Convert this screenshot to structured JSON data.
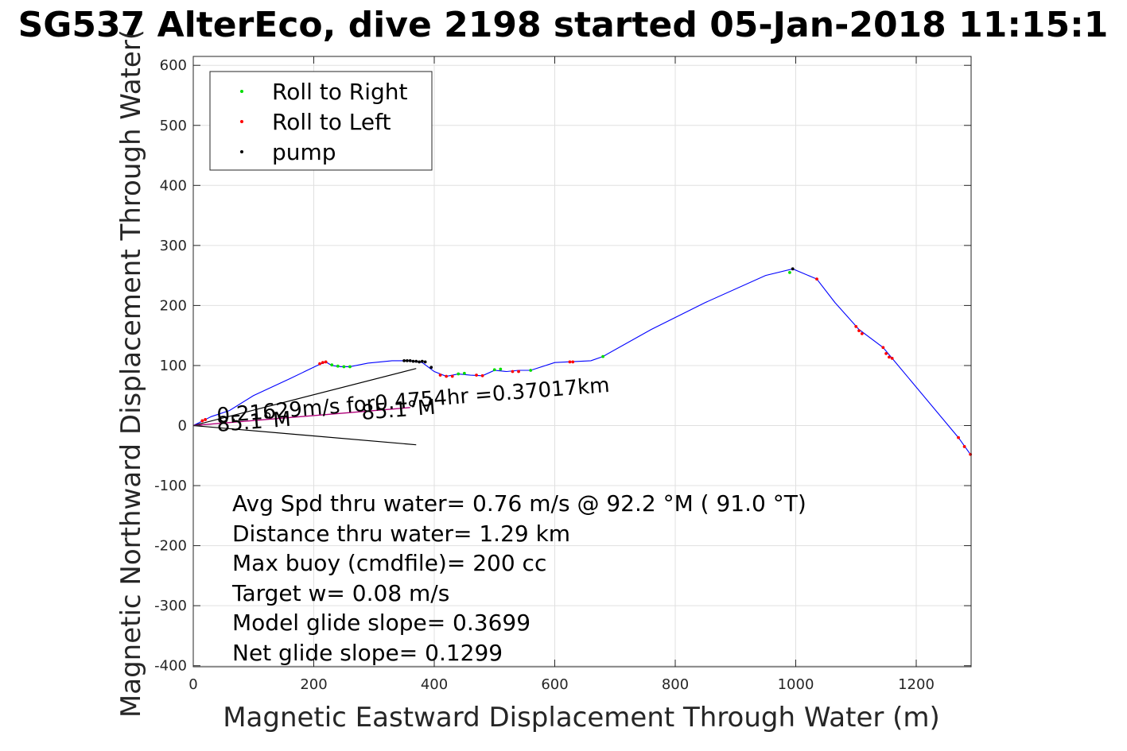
{
  "chart_data": {
    "type": "line",
    "title": "SG537 AlterEco, dive 2198 started 05-Jan-2018 11:15:1",
    "xlabel": "Magnetic Eastward Displacement Through Water (m)",
    "ylabel": "Magnetic Northward Displacement Through Water(",
    "xlim": [
      0,
      1290
    ],
    "ylim": [
      -400,
      610
    ],
    "xticks": [
      0,
      200,
      400,
      600,
      800,
      1000,
      1200
    ],
    "yticks": [
      600,
      500,
      400,
      300,
      200,
      100,
      0,
      -100,
      -200,
      -300,
      -400
    ],
    "grid": true,
    "legend_position": "top-left",
    "legend": [
      {
        "label": "Roll to Right",
        "color": "#00dd00"
      },
      {
        "label": "Roll to Left",
        "color": "#ff0000"
      },
      {
        "label": "pump",
        "color": "#000000"
      }
    ],
    "track": {
      "color": "#0000ff",
      "x": [
        0,
        10,
        20,
        30,
        60,
        100,
        160,
        210,
        220,
        230,
        245,
        260,
        290,
        330,
        360,
        380,
        400,
        420,
        440,
        460,
        480,
        500,
        520,
        540,
        560,
        600,
        620,
        660,
        680,
        760,
        850,
        950,
        995,
        1035,
        1065,
        1105,
        1145,
        1160,
        1270,
        1290
      ],
      "y": [
        0,
        5,
        10,
        15,
        25,
        50,
        78,
        102,
        106,
        100,
        98,
        98,
        104,
        108,
        108,
        105,
        90,
        82,
        86,
        84,
        83,
        92,
        90,
        92,
        92,
        105,
        106,
        108,
        115,
        160,
        205,
        250,
        261,
        244,
        205,
        160,
        130,
        112,
        -20,
        -48
      ]
    },
    "roll_right_points": {
      "x": [
        230,
        240,
        250,
        260,
        440,
        450,
        500,
        510,
        560,
        680,
        990
      ],
      "y": [
        101,
        99,
        98,
        98,
        86,
        87,
        93,
        94,
        92,
        115,
        255
      ]
    },
    "roll_left_points": {
      "x": [
        15,
        20,
        210,
        215,
        220,
        410,
        420,
        430,
        470,
        480,
        530,
        540,
        625,
        630,
        1035,
        1100,
        1105,
        1110,
        1145,
        1150,
        1155,
        1160,
        1270,
        1280,
        1290
      ],
      "y": [
        8,
        10,
        103,
        105,
        106,
        84,
        82,
        82,
        84,
        83,
        90,
        90,
        106,
        106,
        244,
        165,
        158,
        153,
        130,
        120,
        114,
        112,
        -20,
        -35,
        -48
      ]
    },
    "pump_points": {
      "x": [
        350,
        355,
        360,
        365,
        370,
        375,
        380,
        385,
        395,
        995
      ],
      "y": [
        108,
        108,
        108,
        107,
        107,
        106,
        107,
        106,
        97,
        261
      ]
    },
    "current_vector": {
      "color": "#000000",
      "shaft": [
        [
          0,
          0
        ],
        [
          370,
          95
        ]
      ],
      "head": [
        [
          0,
          0
        ],
        [
          370,
          -32
        ]
      ]
    },
    "labels": [
      {
        "text": "0.21629m/s for0.4754hr =0.37017km",
        "x": 40,
        "y": 5
      },
      {
        "text": "85.1°M",
        "x": 40,
        "y": -10
      },
      {
        "text": "85.1°M",
        "x": 280,
        "y": 10
      }
    ],
    "stats": [
      "Avg Spd thru water=  0.76 m/s @  92.2 °M ( 91.0 °T)",
      "Distance thru water=  1.29 km",
      "Max buoy (cmdfile)= 200 cc",
      "Target w= 0.08 m/s",
      "Model glide slope= 0.3699",
      "Net glide slope= 0.1299"
    ]
  }
}
